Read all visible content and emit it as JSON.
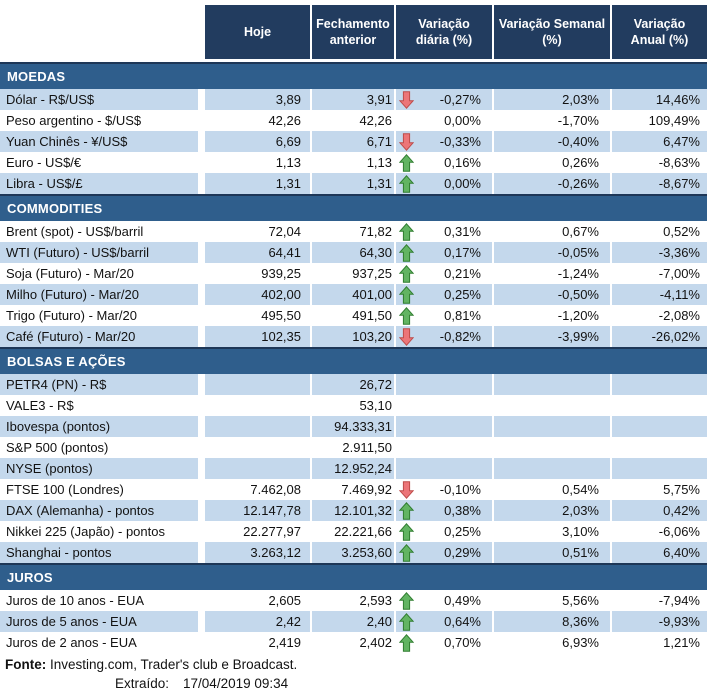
{
  "colors": {
    "header_bg": "#223C5F",
    "section_bg": "#2F5E8C",
    "row_alt_bg": "#C4D8EC",
    "arrow_up_fill": "#62B462",
    "arrow_down_fill": "#EC7578"
  },
  "header": {
    "columns": [
      "Hoje",
      "Fechamento anterior",
      "Variação diária (%)",
      "Variação Semanal (%)",
      "Variação Anual (%)"
    ]
  },
  "sections": [
    {
      "title": "MOEDAS",
      "rows": [
        {
          "label": "Dólar - R$/US$",
          "hoje": "3,89",
          "fechamento": "3,91",
          "arrow": "down",
          "diaria": "-0,27%",
          "semanal": "2,03%",
          "anual": "14,46%",
          "shaded": true
        },
        {
          "label": "Peso argentino - $/US$",
          "hoje": "42,26",
          "fechamento": "42,26",
          "arrow": null,
          "diaria": "0,00%",
          "semanal": "-1,70%",
          "anual": "109,49%",
          "shaded": false
        },
        {
          "label": "Yuan Chinês - ¥/US$",
          "hoje": "6,69",
          "fechamento": "6,71",
          "arrow": "down",
          "diaria": "-0,33%",
          "semanal": "-0,40%",
          "anual": "6,47%",
          "shaded": true
        },
        {
          "label": "Euro - US$/€",
          "hoje": "1,13",
          "fechamento": "1,13",
          "arrow": "up",
          "diaria": "0,16%",
          "semanal": "0,26%",
          "anual": "-8,63%",
          "shaded": false
        },
        {
          "label": "Libra - US$/£",
          "hoje": "1,31",
          "fechamento": "1,31",
          "arrow": "up",
          "diaria": "0,00%",
          "semanal": "-0,26%",
          "anual": "-8,67%",
          "shaded": true
        }
      ]
    },
    {
      "title": "COMMODITIES",
      "rows": [
        {
          "label": "Brent (spot) - US$/barril",
          "hoje": "72,04",
          "fechamento": "71,82",
          "arrow": "up",
          "diaria": "0,31%",
          "semanal": "0,67%",
          "anual": "0,52%",
          "shaded": false
        },
        {
          "label": "WTI (Futuro) - US$/barril",
          "hoje": "64,41",
          "fechamento": "64,30",
          "arrow": "up",
          "diaria": "0,17%",
          "semanal": "-0,05%",
          "anual": "-3,36%",
          "shaded": true
        },
        {
          "label": "Soja (Futuro) - Mar/20",
          "hoje": "939,25",
          "fechamento": "937,25",
          "arrow": "up",
          "diaria": "0,21%",
          "semanal": "-1,24%",
          "anual": "-7,00%",
          "shaded": false
        },
        {
          "label": "Milho (Futuro) - Mar/20",
          "hoje": "402,00",
          "fechamento": "401,00",
          "arrow": "up",
          "diaria": "0,25%",
          "semanal": "-0,50%",
          "anual": "-4,11%",
          "shaded": true
        },
        {
          "label": "Trigo (Futuro) - Mar/20",
          "hoje": "495,50",
          "fechamento": "491,50",
          "arrow": "up",
          "diaria": "0,81%",
          "semanal": "-1,20%",
          "anual": "-2,08%",
          "shaded": false
        },
        {
          "label": "Café (Futuro) - Mar/20",
          "hoje": "102,35",
          "fechamento": "103,20",
          "arrow": "down",
          "diaria": "-0,82%",
          "semanal": "-3,99%",
          "anual": "-26,02%",
          "shaded": true
        }
      ]
    },
    {
      "title": "BOLSAS E AÇÕES",
      "rows": [
        {
          "label": "PETR4 (PN) - R$",
          "hoje": "",
          "fechamento": "26,72",
          "arrow": null,
          "diaria": "",
          "semanal": "",
          "anual": "",
          "shaded": true
        },
        {
          "label": "VALE3 - R$",
          "hoje": "",
          "fechamento": "53,10",
          "arrow": null,
          "diaria": "",
          "semanal": "",
          "anual": "",
          "shaded": false
        },
        {
          "label": "Ibovespa (pontos)",
          "hoje": "",
          "fechamento": "94.333,31",
          "arrow": null,
          "diaria": "",
          "semanal": "",
          "anual": "",
          "shaded": true
        },
        {
          "label": "S&P 500 (pontos)",
          "hoje": "",
          "fechamento": "2.911,50",
          "arrow": null,
          "diaria": "",
          "semanal": "",
          "anual": "",
          "shaded": false
        },
        {
          "label": "NYSE (pontos)",
          "hoje": "",
          "fechamento": "12.952,24",
          "arrow": null,
          "diaria": "",
          "semanal": "",
          "anual": "",
          "shaded": true
        },
        {
          "label": "FTSE 100 (Londres)",
          "hoje": "7.462,08",
          "fechamento": "7.469,92",
          "arrow": "down",
          "diaria": "-0,10%",
          "semanal": "0,54%",
          "anual": "5,75%",
          "shaded": false
        },
        {
          "label": "DAX (Alemanha) - pontos",
          "hoje": "12.147,78",
          "fechamento": "12.101,32",
          "arrow": "up",
          "diaria": "0,38%",
          "semanal": "2,03%",
          "anual": "0,42%",
          "shaded": true
        },
        {
          "label": "Nikkei 225 (Japão) - pontos",
          "hoje": "22.277,97",
          "fechamento": "22.221,66",
          "arrow": "up",
          "diaria": "0,25%",
          "semanal": "3,10%",
          "anual": "-6,06%",
          "shaded": false
        },
        {
          "label": "Shanghai - pontos",
          "hoje": "3.263,12",
          "fechamento": "3.253,60",
          "arrow": "up",
          "diaria": "0,29%",
          "semanal": "0,51%",
          "anual": "6,40%",
          "shaded": true
        }
      ]
    },
    {
      "title": "JUROS",
      "rows": [
        {
          "label": "Juros de 10 anos - EUA",
          "hoje": "2,605",
          "fechamento": "2,593",
          "arrow": "up",
          "diaria": "0,49%",
          "semanal": "5,56%",
          "anual": "-7,94%",
          "shaded": false
        },
        {
          "label": "Juros de 5 anos - EUA",
          "hoje": "2,42",
          "fechamento": "2,40",
          "arrow": "up",
          "diaria": "0,64%",
          "semanal": "8,36%",
          "anual": "-9,93%",
          "shaded": true
        },
        {
          "label": "Juros de 2 anos - EUA",
          "hoje": "2,419",
          "fechamento": "2,402",
          "arrow": "up",
          "diaria": "0,70%",
          "semanal": "6,93%",
          "anual": "1,21%",
          "shaded": false
        }
      ]
    }
  ],
  "footer": {
    "fonte_label": "Fonte:",
    "fonte_text": "Investing.com, Trader's club e Broadcast.",
    "extraido_label": "Extraído:",
    "extraido_value": "17/04/2019 09:34"
  }
}
